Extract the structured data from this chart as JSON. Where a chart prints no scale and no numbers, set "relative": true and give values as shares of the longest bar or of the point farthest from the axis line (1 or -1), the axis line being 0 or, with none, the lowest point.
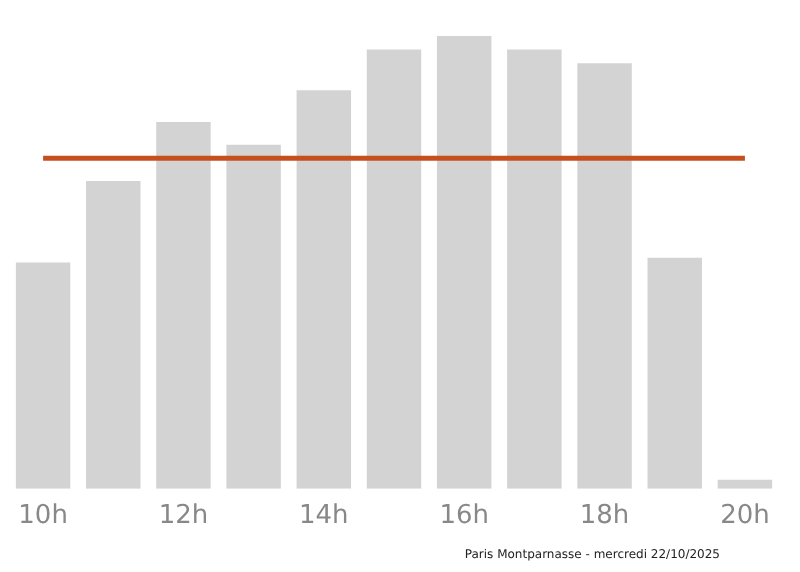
{
  "chart_data": {
    "type": "bar",
    "relative": true,
    "categories": [
      "10h",
      null,
      "12h",
      null,
      "14h",
      null,
      "16h",
      null,
      "18h",
      null,
      "20h"
    ],
    "values": [
      0.5,
      0.68,
      0.81,
      0.76,
      0.88,
      0.97,
      1,
      0.97,
      0.94,
      0.51,
      0.02
    ],
    "color": "#d3d3d3",
    "ref_lines": [
      {
        "axis": "y",
        "value": 0.73,
        "color": "#c5501d"
      }
    ],
    "annotations": [
      "Paris Montparnasse - mercredi 22/10/2025"
    ],
    "grid": false,
    "legend": false
  }
}
